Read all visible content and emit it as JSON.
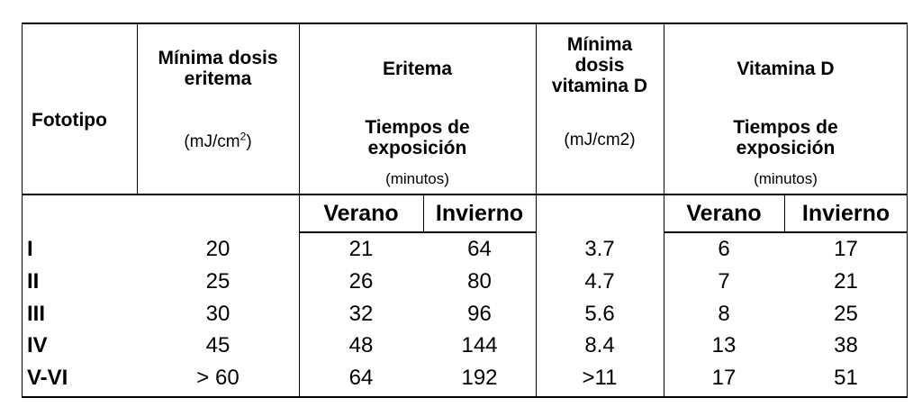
{
  "table": {
    "headers": {
      "fototipo": "Fototipo",
      "med_title": [
        "Mínima dosis",
        "eritema"
      ],
      "med_unit_base": "(mJ/cm",
      "med_unit_sup": "2",
      "med_unit_end": ")",
      "eritema_title": "Eritema",
      "eritema_sub": [
        "Tiempos de",
        "exposición"
      ],
      "eritema_minutes": "(minutos)",
      "mdvd_title": [
        "Mínima",
        "dosis",
        "vitamina D"
      ],
      "mdvd_unit": "(mJ/cm2)",
      "vitd_title": "Vitamina D",
      "vitd_sub": [
        "Tiempos de",
        "exposición"
      ],
      "vitd_minutes": "(minutos)"
    },
    "subheaders": {
      "eritema_verano": "Verano",
      "eritema_invierno": "Invierno",
      "vitd_verano": "Verano",
      "vitd_invierno": "Invierno"
    },
    "rows": [
      {
        "fototipo": "I",
        "med": "20",
        "er_verano": "21",
        "er_invierno": "64",
        "mdvd": "3.7",
        "vd_verano": "6",
        "vd_invierno": "17"
      },
      {
        "fototipo": "II",
        "med": "25",
        "er_verano": "26",
        "er_invierno": "80",
        "mdvd": "4.7",
        "vd_verano": "7",
        "vd_invierno": "21"
      },
      {
        "fototipo": "III",
        "med": "30",
        "er_verano": "32",
        "er_invierno": "96",
        "mdvd": "5.6",
        "vd_verano": "8",
        "vd_invierno": "25"
      },
      {
        "fototipo": "IV",
        "med": "45",
        "er_verano": "48",
        "er_invierno": "144",
        "mdvd": "8.4",
        "vd_verano": "13",
        "vd_invierno": "38"
      },
      {
        "fototipo": "V-VI",
        "med": "> 60",
        "er_verano": "64",
        "er_invierno": "192",
        "mdvd": ">11",
        "vd_verano": "17",
        "vd_invierno": "51"
      }
    ]
  }
}
